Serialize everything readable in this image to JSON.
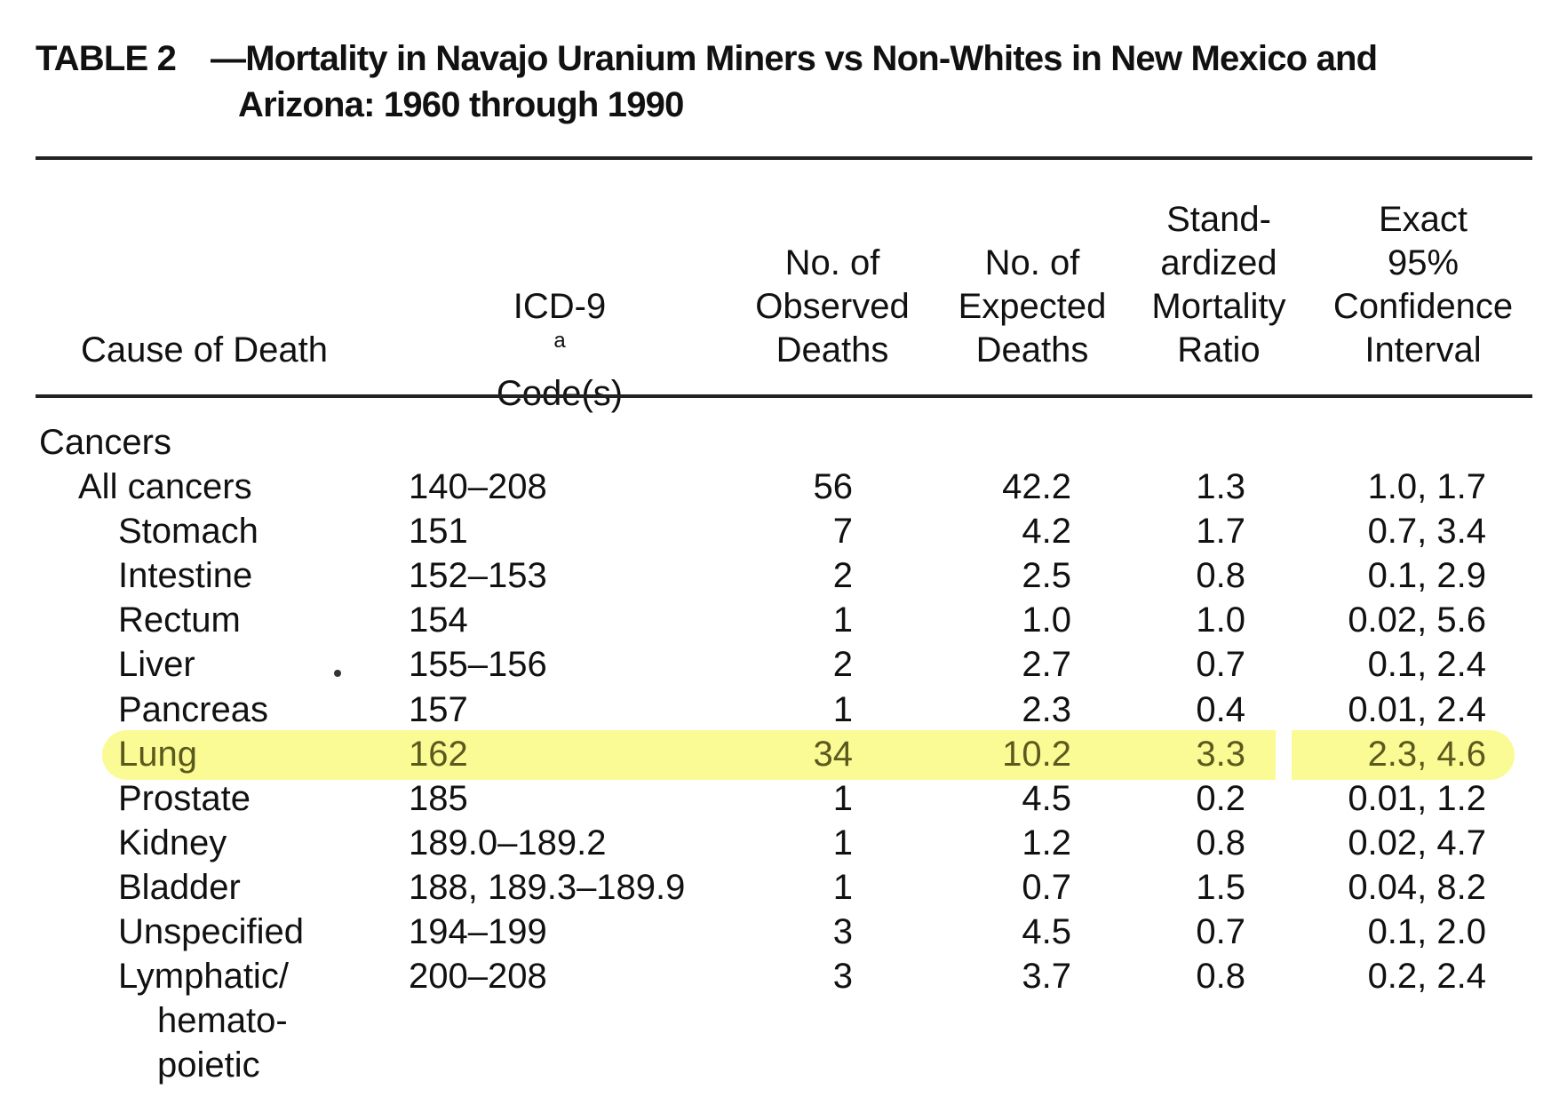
{
  "caption": {
    "label": "TABLE 2",
    "dash": "—",
    "title_line1": "Mortality in Navajo Uranium Miners vs Non-Whites in New Mexico and",
    "title_line2": "Arizona: 1960 through 1990"
  },
  "columns": {
    "cause": {
      "lines": [
        "Cause of Death"
      ]
    },
    "icd": {
      "line1": "ICD-9",
      "footnote": "a",
      "line2": "Code(s)"
    },
    "observed": {
      "lines": [
        "No. of",
        "Observed",
        "Deaths"
      ]
    },
    "expected": {
      "lines": [
        "No. of",
        "Expected",
        "Deaths"
      ]
    },
    "smr": {
      "lines": [
        "Stand-",
        "ardized",
        "Mortality",
        "Ratio"
      ]
    },
    "ci": {
      "lines": [
        "Exact",
        "95%",
        "Confidence",
        "Interval"
      ]
    }
  },
  "section_heading": "Cancers",
  "rows": [
    {
      "cause": "All cancers",
      "level": 1,
      "icd": "140–208",
      "observed": "56",
      "expected": "42.2",
      "smr": "1.3",
      "ci": "1.0, 1.7",
      "highlighted": false
    },
    {
      "cause": "Stomach",
      "level": 2,
      "icd": "151",
      "observed": "7",
      "expected": "4.2",
      "smr": "1.7",
      "ci": "0.7, 3.4",
      "highlighted": false
    },
    {
      "cause": "Intestine",
      "level": 2,
      "icd": "152–153",
      "observed": "2",
      "expected": "2.5",
      "smr": "0.8",
      "ci": "0.1, 2.9",
      "highlighted": false
    },
    {
      "cause": "Rectum",
      "level": 2,
      "icd": "154",
      "observed": "1",
      "expected": "1.0",
      "smr": "1.0",
      "ci": "0.02, 5.6",
      "highlighted": false
    },
    {
      "cause": "Liver",
      "level": 2,
      "icd": "155–156",
      "observed": "2",
      "expected": "2.7",
      "smr": "0.7",
      "ci": "0.1, 2.4",
      "highlighted": false
    },
    {
      "cause": "Pancreas",
      "level": 2,
      "icd": "157",
      "observed": "1",
      "expected": "2.3",
      "smr": "0.4",
      "ci": "0.01, 2.4",
      "highlighted": false
    },
    {
      "cause": "Lung",
      "level": 2,
      "icd": "162",
      "observed": "34",
      "expected": "10.2",
      "smr": "3.3",
      "ci": "2.3, 4.6",
      "highlighted": true
    },
    {
      "cause": "Prostate",
      "level": 2,
      "icd": "185",
      "observed": "1",
      "expected": "4.5",
      "smr": "0.2",
      "ci": "0.01, 1.2",
      "highlighted": false
    },
    {
      "cause": "Kidney",
      "level": 2,
      "icd": "189.0–189.2",
      "observed": "1",
      "expected": "1.2",
      "smr": "0.8",
      "ci": "0.02, 4.7",
      "highlighted": false
    },
    {
      "cause": "Bladder",
      "level": 2,
      "icd": "188, 189.3–189.9",
      "observed": "1",
      "expected": "0.7",
      "smr": "1.5",
      "ci": "0.04, 8.2",
      "highlighted": false
    },
    {
      "cause": "Unspecified",
      "level": 2,
      "icd": "194–199",
      "observed": "3",
      "expected": "4.5",
      "smr": "0.7",
      "ci": "0.1, 2.0",
      "highlighted": false
    },
    {
      "cause": "Lymphatic/",
      "cause_cont": [
        "hemato-",
        "poietic"
      ],
      "level": 2,
      "icd": "200–208",
      "observed": "3",
      "expected": "3.7",
      "smr": "0.8",
      "ci": "0.2, 2.4",
      "highlighted": false
    }
  ],
  "colors": {
    "highlight": "#fbfb8a",
    "highlight_text": "#5a5a1e",
    "text": "#111111"
  }
}
